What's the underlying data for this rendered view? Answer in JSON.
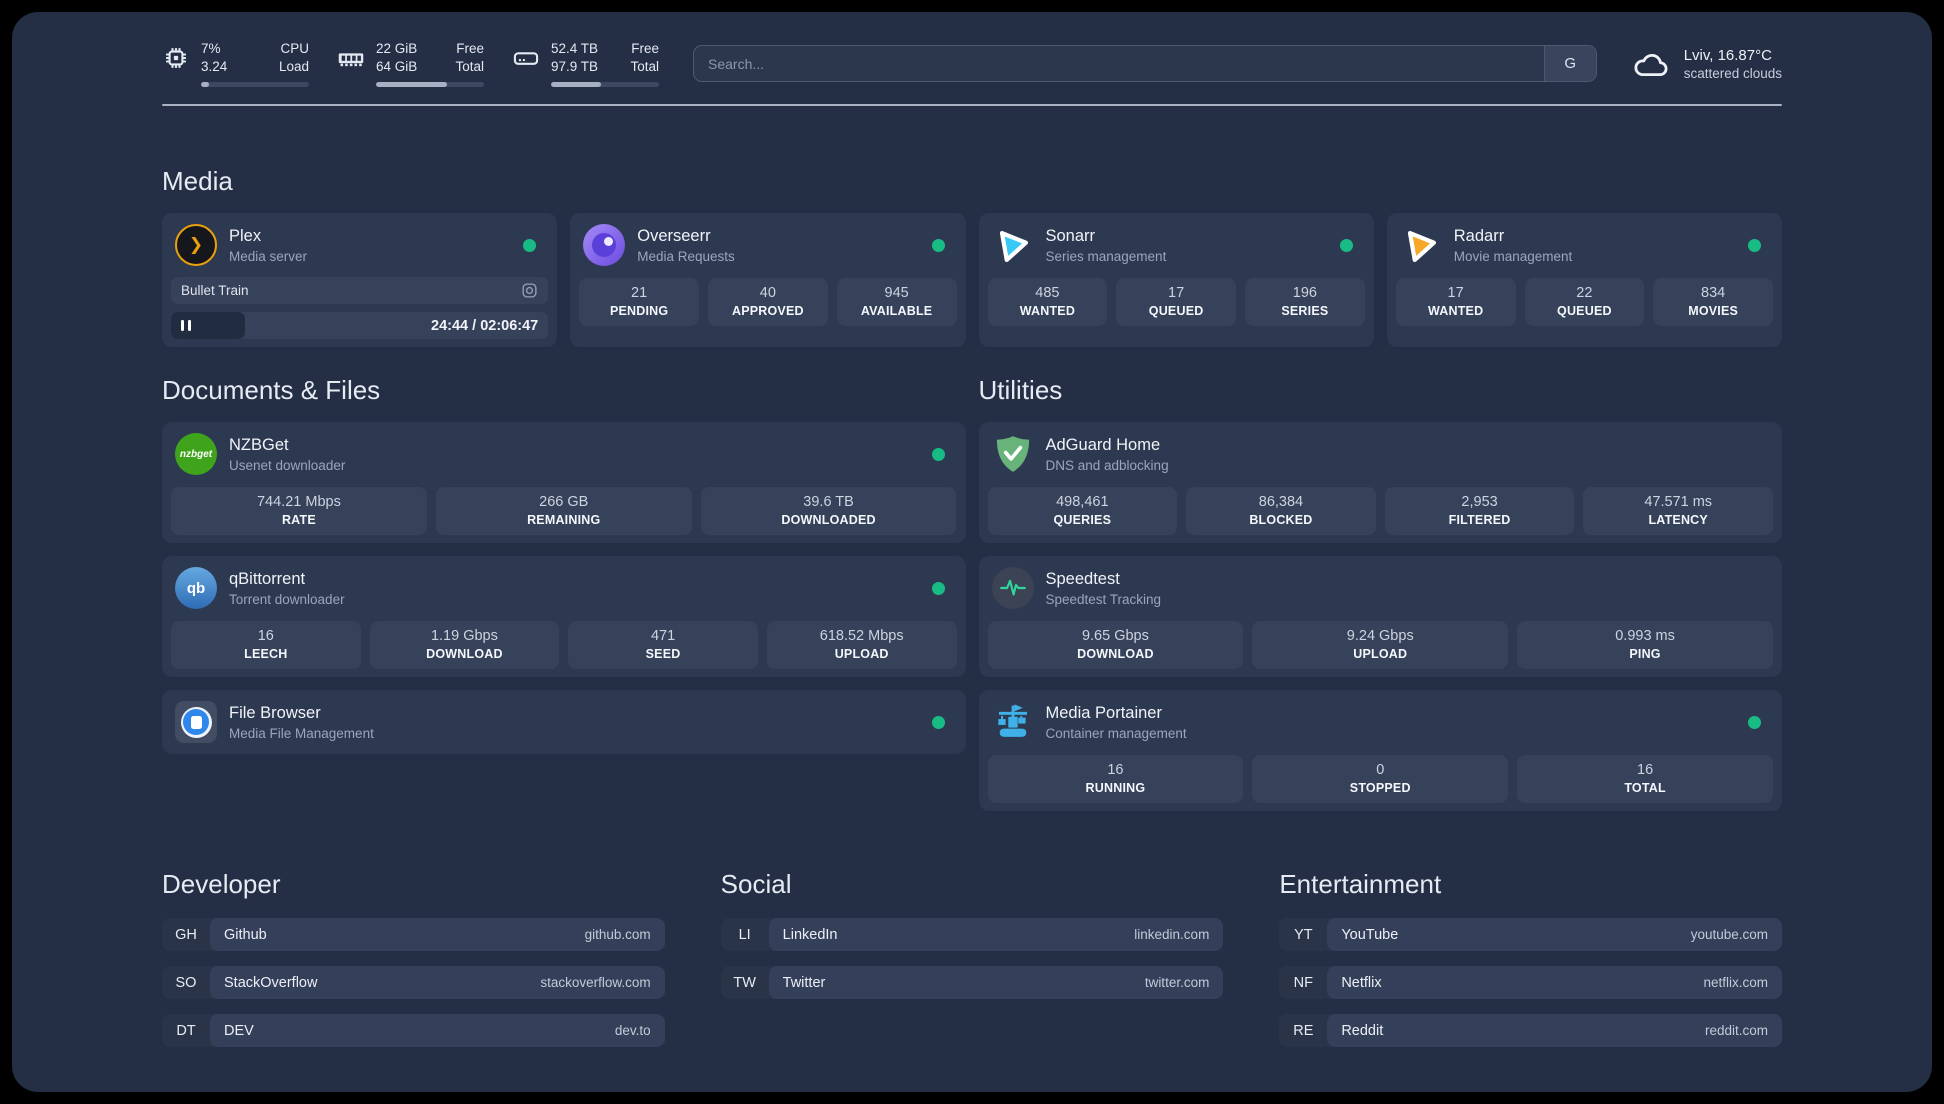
{
  "header": {
    "resources": [
      {
        "name": "cpu",
        "v1": "7%",
        "v2": "3.24",
        "l1": "CPU",
        "l2": "Load",
        "progress": 7
      },
      {
        "name": "memory",
        "v1": "22 GiB",
        "v2": "64 GiB",
        "l1": "Free",
        "l2": "Total",
        "progress": 66
      },
      {
        "name": "disk",
        "v1": "52.4 TB",
        "v2": "97.9 TB",
        "l1": "Free",
        "l2": "Total",
        "progress": 46
      }
    ],
    "search": {
      "placeholder": "Search...",
      "provider_button": "G"
    },
    "weather": {
      "location": "Lviv, 16.87°C",
      "condition": "scattered clouds"
    }
  },
  "media": {
    "title": "Media",
    "plex": {
      "name": "Plex",
      "subtitle": "Media server",
      "status": "online",
      "now_playing": "Bullet Train",
      "time": "24:44 / 02:06:47",
      "progress_percent": 19.5
    },
    "overseerr": {
      "name": "Overseerr",
      "subtitle": "Media Requests",
      "status": "online",
      "stats": [
        {
          "value": "21",
          "label": "PENDING"
        },
        {
          "value": "40",
          "label": "APPROVED"
        },
        {
          "value": "945",
          "label": "AVAILABLE"
        }
      ]
    },
    "sonarr": {
      "name": "Sonarr",
      "subtitle": "Series management",
      "status": "online",
      "stats": [
        {
          "value": "485",
          "label": "WANTED"
        },
        {
          "value": "17",
          "label": "QUEUED"
        },
        {
          "value": "196",
          "label": "SERIES"
        }
      ]
    },
    "radarr": {
      "name": "Radarr",
      "subtitle": "Movie management",
      "status": "online",
      "stats": [
        {
          "value": "17",
          "label": "WANTED"
        },
        {
          "value": "22",
          "label": "QUEUED"
        },
        {
          "value": "834",
          "label": "MOVIES"
        }
      ]
    }
  },
  "documents": {
    "title": "Documents & Files",
    "nzbget": {
      "name": "NZBGet",
      "subtitle": "Usenet downloader",
      "icon_text": "nzbget",
      "status": "online",
      "stats": [
        {
          "value": "744.21 Mbps",
          "label": "RATE"
        },
        {
          "value": "266 GB",
          "label": "REMAINING"
        },
        {
          "value": "39.6 TB",
          "label": "DOWNLOADED"
        }
      ]
    },
    "qbittorrent": {
      "name": "qBittorrent",
      "subtitle": "Torrent downloader",
      "icon_text": "qb",
      "status": "online",
      "stats": [
        {
          "value": "16",
          "label": "LEECH"
        },
        {
          "value": "1.19 Gbps",
          "label": "DOWNLOAD"
        },
        {
          "value": "471",
          "label": "SEED"
        },
        {
          "value": "618.52 Mbps",
          "label": "UPLOAD"
        }
      ]
    },
    "filebrowser": {
      "name": "File Browser",
      "subtitle": "Media File Management",
      "status": "online"
    }
  },
  "utilities": {
    "title": "Utilities",
    "adguard": {
      "name": "AdGuard Home",
      "subtitle": "DNS and adblocking",
      "stats": [
        {
          "value": "498,461",
          "label": "QUERIES"
        },
        {
          "value": "86,384",
          "label": "BLOCKED"
        },
        {
          "value": "2,953",
          "label": "FILTERED"
        },
        {
          "value": "47.571 ms",
          "label": "LATENCY"
        }
      ]
    },
    "speedtest": {
      "name": "Speedtest",
      "subtitle": "Speedtest Tracking",
      "stats": [
        {
          "value": "9.65 Gbps",
          "label": "DOWNLOAD"
        },
        {
          "value": "9.24 Gbps",
          "label": "UPLOAD"
        },
        {
          "value": "0.993 ms",
          "label": "PING"
        }
      ]
    },
    "portainer": {
      "name": "Media Portainer",
      "subtitle": "Container management",
      "status": "online",
      "stats": [
        {
          "value": "16",
          "label": "RUNNING"
        },
        {
          "value": "0",
          "label": "STOPPED"
        },
        {
          "value": "16",
          "label": "TOTAL"
        }
      ]
    }
  },
  "bookmarks": {
    "developer": {
      "title": "Developer",
      "links": [
        {
          "abbr": "GH",
          "name": "Github",
          "url": "github.com"
        },
        {
          "abbr": "SO",
          "name": "StackOverflow",
          "url": "stackoverflow.com"
        },
        {
          "abbr": "DT",
          "name": "DEV",
          "url": "dev.to"
        }
      ]
    },
    "social": {
      "title": "Social",
      "links": [
        {
          "abbr": "LI",
          "name": "LinkedIn",
          "url": "linkedin.com"
        },
        {
          "abbr": "TW",
          "name": "Twitter",
          "url": "twitter.com"
        }
      ]
    },
    "entertainment": {
      "title": "Entertainment",
      "links": [
        {
          "abbr": "YT",
          "name": "YouTube",
          "url": "youtube.com"
        },
        {
          "abbr": "NF",
          "name": "Netflix",
          "url": "netflix.com"
        },
        {
          "abbr": "RE",
          "name": "Reddit",
          "url": "reddit.com"
        }
      ]
    }
  },
  "colors": {
    "status_online": "#18bb84",
    "plex_accent": "#e8a00c",
    "overseerr_purple": "#7b5cf0",
    "sonarr_blue": "#38c8f5",
    "radarr_orange": "#f7a828",
    "nzbget_green": "#3fa41c",
    "qbittorrent_blue": "#3a79c2",
    "filebrowser_blue": "#2f86eb",
    "adguard_green": "#67b37a",
    "speedtest_green": "#2ed79e",
    "portainer_blue": "#3fb0e8"
  }
}
